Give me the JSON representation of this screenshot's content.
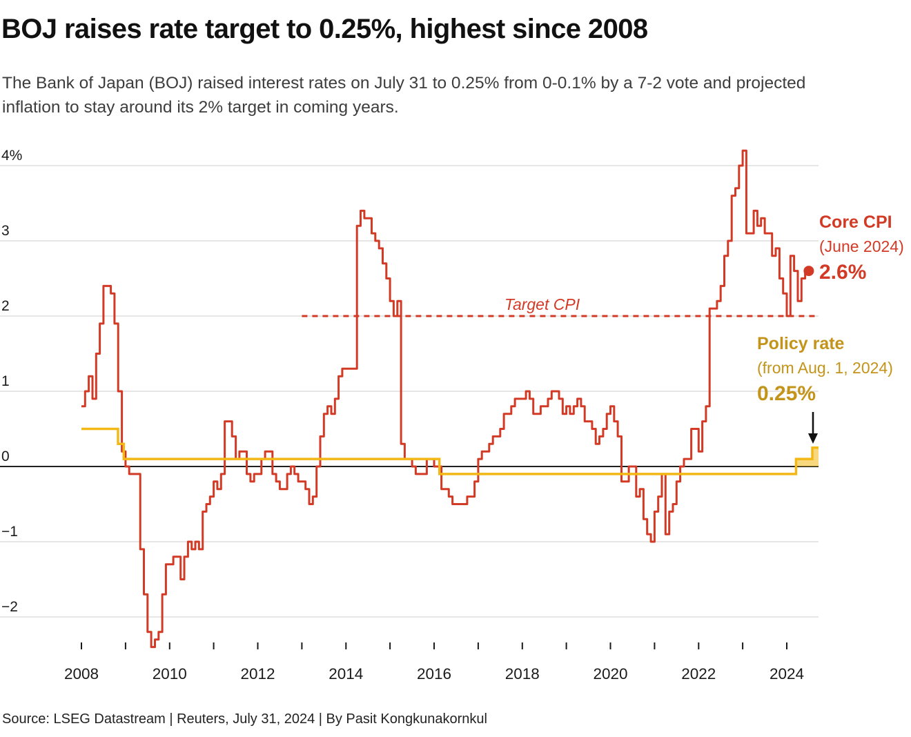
{
  "header": {
    "title": "BOJ raises rate target to 0.25%, highest since 2008",
    "subtitle": "The Bank of Japan (BOJ) raised interest rates on July 31 to 0.25% from 0-0.1% by a 7-2 vote and projected inflation to stay around its 2% target in coming years."
  },
  "annotations": {
    "target_cpi_label": "Target CPI",
    "core_cpi": {
      "label": "Core CPI",
      "period": "(June 2024)",
      "value": "2.6%"
    },
    "policy_rate": {
      "label": "Policy rate",
      "period": "(from Aug. 1, 2024)",
      "value": "0.25%"
    }
  },
  "footer": {
    "source": "Source: LSEG Datastream | Reuters, July 31, 2024 | By Pasit Kongkunakornkul"
  },
  "colors": {
    "cpi_red": "#d23a26",
    "policy_gold_line": "#f3b816",
    "policy_gold_text": "#c4941a",
    "grid": "#d8d8d8",
    "zero_line": "#000000",
    "text": "#1a1a1a"
  },
  "chart_data": {
    "type": "line",
    "title": "BOJ raises rate target to 0.25%, highest since 2008",
    "unit": "%",
    "y_axis": {
      "tick_values": [
        4,
        3,
        2,
        1,
        0,
        -1,
        -2
      ],
      "tick_labels": [
        "4%",
        "3",
        "2",
        "1",
        "0",
        "−1",
        "−2"
      ],
      "range": [
        -2.6,
        4.3
      ]
    },
    "x_axis": {
      "tick_years_start": 2008,
      "tick_years_end": 2024,
      "labeled_years": [
        2008,
        2010,
        2012,
        2014,
        2016,
        2018,
        2020,
        2022,
        2024
      ]
    },
    "target_cpi_line": {
      "value": 2,
      "from_year": 2013.0,
      "to_year": 2024.72,
      "style": "dashed"
    },
    "series": [
      {
        "name": "Core CPI (year-on-year %)",
        "type": "step-monthly",
        "start_year": 2008,
        "end_label": "June 2024",
        "color_key": "cpi_red",
        "values": [
          0.8,
          1.0,
          1.2,
          0.9,
          1.5,
          1.9,
          2.4,
          2.4,
          2.3,
          1.9,
          1.0,
          0.2,
          0.0,
          -0.1,
          -0.1,
          -0.1,
          -1.1,
          -1.7,
          -2.2,
          -2.4,
          -2.3,
          -2.2,
          -1.7,
          -1.3,
          -1.3,
          -1.2,
          -1.2,
          -1.5,
          -1.2,
          -1.0,
          -1.1,
          -1.0,
          -1.1,
          -0.6,
          -0.5,
          -0.4,
          -0.2,
          -0.3,
          -0.1,
          0.6,
          0.6,
          0.4,
          0.1,
          0.2,
          0.2,
          -0.1,
          -0.2,
          -0.1,
          -0.1,
          0.1,
          0.2,
          0.2,
          -0.1,
          -0.2,
          -0.3,
          -0.3,
          -0.1,
          0.0,
          -0.1,
          -0.2,
          -0.2,
          -0.3,
          -0.5,
          -0.4,
          0.0,
          0.4,
          0.7,
          0.8,
          0.7,
          0.9,
          1.2,
          1.3,
          1.3,
          1.3,
          1.3,
          3.2,
          3.4,
          3.3,
          3.3,
          3.1,
          3.0,
          2.9,
          2.7,
          2.5,
          2.2,
          2.0,
          2.2,
          0.3,
          0.1,
          0.1,
          0.0,
          -0.1,
          -0.1,
          -0.1,
          0.1,
          0.1,
          0.0,
          0.0,
          -0.3,
          -0.3,
          -0.4,
          -0.5,
          -0.5,
          -0.5,
          -0.5,
          -0.4,
          -0.4,
          -0.2,
          0.1,
          0.2,
          0.2,
          0.3,
          0.4,
          0.4,
          0.5,
          0.7,
          0.7,
          0.8,
          0.9,
          0.9,
          0.9,
          1.0,
          0.9,
          0.7,
          0.7,
          0.8,
          0.8,
          0.9,
          1.0,
          1.0,
          0.9,
          0.7,
          0.8,
          0.7,
          0.8,
          0.9,
          0.8,
          0.6,
          0.6,
          0.5,
          0.3,
          0.4,
          0.5,
          0.7,
          0.8,
          0.6,
          0.4,
          -0.2,
          -0.2,
          0.0,
          0.0,
          -0.4,
          -0.3,
          -0.7,
          -0.9,
          -1.0,
          -0.6,
          -0.4,
          -0.1,
          -0.9,
          -0.6,
          -0.5,
          -0.2,
          0.0,
          0.1,
          0.1,
          0.5,
          0.5,
          0.2,
          0.6,
          0.8,
          2.1,
          2.1,
          2.2,
          2.4,
          2.8,
          3.0,
          3.6,
          3.7,
          4.0,
          4.2,
          3.1,
          3.1,
          3.4,
          3.2,
          3.3,
          3.1,
          3.1,
          2.8,
          2.9,
          2.5,
          2.3,
          2.0,
          2.8,
          2.6,
          2.2,
          2.5,
          2.6
        ]
      },
      {
        "name": "Policy rate (%)",
        "type": "step-points",
        "color_key": "policy_gold_line",
        "end_year": 2024.72,
        "highlight_fill_from_year": 2024.21,
        "points": [
          {
            "year": 2008.0,
            "value": 0.5
          },
          {
            "year": 2008.83,
            "value": 0.3
          },
          {
            "year": 2008.96,
            "value": 0.1
          },
          {
            "year": 2016.12,
            "value": -0.1
          },
          {
            "year": 2024.21,
            "value": 0.1
          },
          {
            "year": 2024.58,
            "value": 0.25
          }
        ]
      }
    ],
    "end_markers": {
      "core_cpi_dot": {
        "year": 2024.5,
        "value": 2.6
      }
    }
  }
}
